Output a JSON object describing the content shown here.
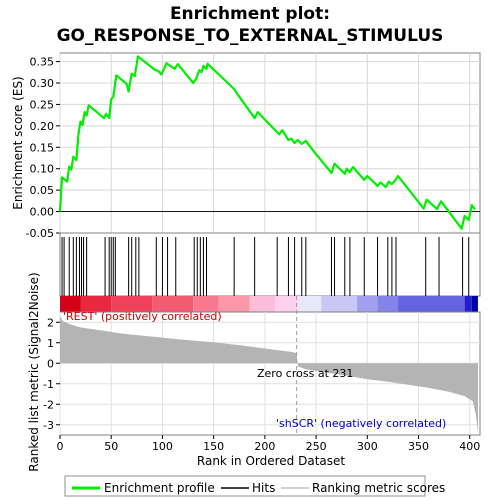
{
  "chart_data": {
    "type": "line",
    "title_line1": "Enrichment plot:",
    "title_line2": "GO_RESPONSE_TO_EXTERNAL_STIMULUS",
    "xlabel": "Rank in Ordered Dataset",
    "xlim": [
      0,
      410
    ],
    "xticks": [
      0,
      50,
      100,
      150,
      200,
      250,
      300,
      350,
      400
    ],
    "panel_es": {
      "ylabel": "Enrichment score (ES)",
      "ylim": [
        -0.05,
        0.37
      ],
      "yticks": [
        "-0.05",
        "0.00",
        "0.05",
        "0.10",
        "0.15",
        "0.20",
        "0.25",
        "0.30",
        "0.35"
      ],
      "ytick_values": [
        -0.05,
        0.0,
        0.05,
        0.1,
        0.15,
        0.2,
        0.25,
        0.3,
        0.35
      ],
      "grid": true,
      "series": [
        {
          "name": "Enrichment profile",
          "color": "#00ee00",
          "points": [
            [
              0,
              0.0
            ],
            [
              2,
              0.08
            ],
            [
              7,
              0.07
            ],
            [
              9,
              0.105
            ],
            [
              11,
              0.098
            ],
            [
              13,
              0.128
            ],
            [
              16,
              0.12
            ],
            [
              18,
              0.18
            ],
            [
              20,
              0.21
            ],
            [
              22,
              0.202
            ],
            [
              24,
              0.232
            ],
            [
              26,
              0.224
            ],
            [
              28,
              0.248
            ],
            [
              43,
              0.218
            ],
            [
              45,
              0.228
            ],
            [
              48,
              0.218
            ],
            [
              50,
              0.262
            ],
            [
              52,
              0.268
            ],
            [
              55,
              0.318
            ],
            [
              65,
              0.298
            ],
            [
              67,
              0.28
            ],
            [
              70,
              0.322
            ],
            [
              73,
              0.316
            ],
            [
              76,
              0.362
            ],
            [
              93,
              0.33
            ],
            [
              96,
              0.328
            ],
            [
              99,
              0.32
            ],
            [
              104,
              0.346
            ],
            [
              112,
              0.333
            ],
            [
              115,
              0.344
            ],
            [
              130,
              0.3
            ],
            [
              133,
              0.31
            ],
            [
              136,
              0.33
            ],
            [
              138,
              0.325
            ],
            [
              140,
              0.34
            ],
            [
              143,
              0.333
            ],
            [
              144,
              0.345
            ],
            [
              170,
              0.286
            ],
            [
              173,
              0.275
            ],
            [
              190,
              0.218
            ],
            [
              193,
              0.232
            ],
            [
              214,
              0.18
            ],
            [
              217,
              0.19
            ],
            [
              223,
              0.167
            ],
            [
              226,
              0.17
            ],
            [
              229,
              0.16
            ],
            [
              232,
              0.167
            ],
            [
              236,
              0.158
            ],
            [
              240,
              0.165
            ],
            [
              248,
              0.14
            ],
            [
              265,
              0.09
            ],
            [
              268,
              0.112
            ],
            [
              278,
              0.088
            ],
            [
              280,
              0.1
            ],
            [
              283,
              0.092
            ],
            [
              286,
              0.104
            ],
            [
              297,
              0.074
            ],
            [
              300,
              0.083
            ],
            [
              310,
              0.06
            ],
            [
              313,
              0.068
            ],
            [
              318,
              0.057
            ],
            [
              321,
              0.07
            ],
            [
              324,
              0.064
            ],
            [
              327,
              0.072
            ],
            [
              330,
              0.083
            ],
            [
              355,
              0.007
            ],
            [
              358,
              0.028
            ],
            [
              368,
              0.006
            ],
            [
              372,
              0.024
            ],
            [
              392,
              -0.04
            ],
            [
              395,
              -0.01
            ],
            [
              399,
              -0.02
            ],
            [
              402,
              0.015
            ],
            [
              405,
              0.005
            ]
          ]
        }
      ]
    },
    "panel_hits": {
      "hit_ranks": [
        2,
        4,
        9,
        13,
        16,
        19,
        21,
        23,
        26,
        44,
        48,
        50,
        52,
        54,
        67,
        70,
        74,
        77,
        94,
        100,
        105,
        113,
        131,
        134,
        137,
        140,
        143,
        170,
        190,
        212,
        223,
        229,
        236,
        240,
        265,
        268,
        278,
        283,
        297,
        310,
        320,
        324,
        328,
        357,
        370,
        393,
        399
      ]
    },
    "panel_metric": {
      "ylabel": "Ranked list metric (Signal2Noise)",
      "ylim": [
        -3.5,
        2.5
      ],
      "yticks": [
        "-3",
        "-2",
        "-1",
        "0",
        "1",
        "2"
      ],
      "ytick_values": [
        -3,
        -2,
        -1,
        0,
        1,
        2
      ],
      "zero_cross_rank": 231,
      "annotations": {
        "zero_cross": "Zero cross at 231",
        "positive": "'REST' (positively correlated)",
        "negative": "'shSCR' (negatively correlated)"
      },
      "curve": [
        [
          0,
          2.3
        ],
        [
          3,
          2.05
        ],
        [
          10,
          1.9
        ],
        [
          20,
          1.75
        ],
        [
          40,
          1.6
        ],
        [
          60,
          1.45
        ],
        [
          80,
          1.35
        ],
        [
          100,
          1.25
        ],
        [
          120,
          1.15
        ],
        [
          150,
          1.02
        ],
        [
          180,
          0.85
        ],
        [
          200,
          0.72
        ],
        [
          215,
          0.62
        ],
        [
          225,
          0.56
        ],
        [
          231,
          0.5
        ],
        [
          232,
          -0.15
        ],
        [
          240,
          -0.3
        ],
        [
          260,
          -0.45
        ],
        [
          280,
          -0.6
        ],
        [
          300,
          -0.78
        ],
        [
          320,
          -0.9
        ],
        [
          340,
          -1.05
        ],
        [
          360,
          -1.2
        ],
        [
          380,
          -1.4
        ],
        [
          395,
          -1.6
        ],
        [
          403,
          -1.85
        ],
        [
          406,
          -2.5
        ],
        [
          408,
          -3.4
        ]
      ]
    },
    "legend": {
      "items": [
        {
          "label": "Enrichment profile",
          "color": "#00ee00"
        },
        {
          "label": "Hits",
          "color": "#000000"
        },
        {
          "label": "Ranking metric scores",
          "color": "#c0c0c0"
        }
      ]
    }
  }
}
